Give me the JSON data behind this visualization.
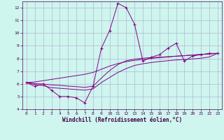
{
  "xlabel": "Windchill (Refroidissement éolien,°C)",
  "bg_color": "#cef5ee",
  "line_color": "#880088",
  "grid_color": "#aaaacc",
  "xlim": [
    -0.5,
    23.5
  ],
  "ylim": [
    4,
    12.5
  ],
  "yticks": [
    4,
    5,
    6,
    7,
    8,
    9,
    10,
    11,
    12
  ],
  "xticks": [
    0,
    1,
    2,
    3,
    4,
    5,
    6,
    7,
    8,
    9,
    10,
    11,
    12,
    13,
    14,
    15,
    16,
    17,
    18,
    19,
    20,
    21,
    22,
    23
  ],
  "series": [
    [
      6.1,
      5.8,
      6.0,
      5.5,
      5.0,
      5.0,
      4.9,
      4.5,
      5.8,
      8.8,
      10.2,
      12.35,
      12.0,
      10.7,
      7.8,
      8.1,
      8.3,
      8.8,
      9.2,
      7.8,
      8.2,
      8.3,
      8.4,
      8.4
    ],
    [
      6.1,
      6.15,
      6.25,
      6.35,
      6.45,
      6.55,
      6.65,
      6.75,
      6.9,
      7.15,
      7.4,
      7.6,
      7.75,
      7.85,
      7.92,
      8.0,
      8.07,
      8.12,
      8.18,
      8.22,
      8.27,
      8.32,
      8.36,
      8.4
    ],
    [
      6.1,
      5.95,
      5.85,
      5.7,
      5.65,
      5.6,
      5.55,
      5.5,
      5.6,
      6.1,
      6.5,
      6.9,
      7.2,
      7.45,
      7.58,
      7.68,
      7.76,
      7.82,
      7.88,
      7.92,
      7.96,
      8.02,
      8.12,
      8.4
    ],
    [
      6.1,
      6.02,
      5.98,
      5.92,
      5.88,
      5.82,
      5.78,
      5.72,
      5.82,
      6.45,
      7.05,
      7.52,
      7.82,
      7.95,
      8.02,
      8.07,
      8.1,
      8.14,
      8.18,
      8.22,
      8.27,
      8.31,
      8.36,
      8.4
    ]
  ]
}
